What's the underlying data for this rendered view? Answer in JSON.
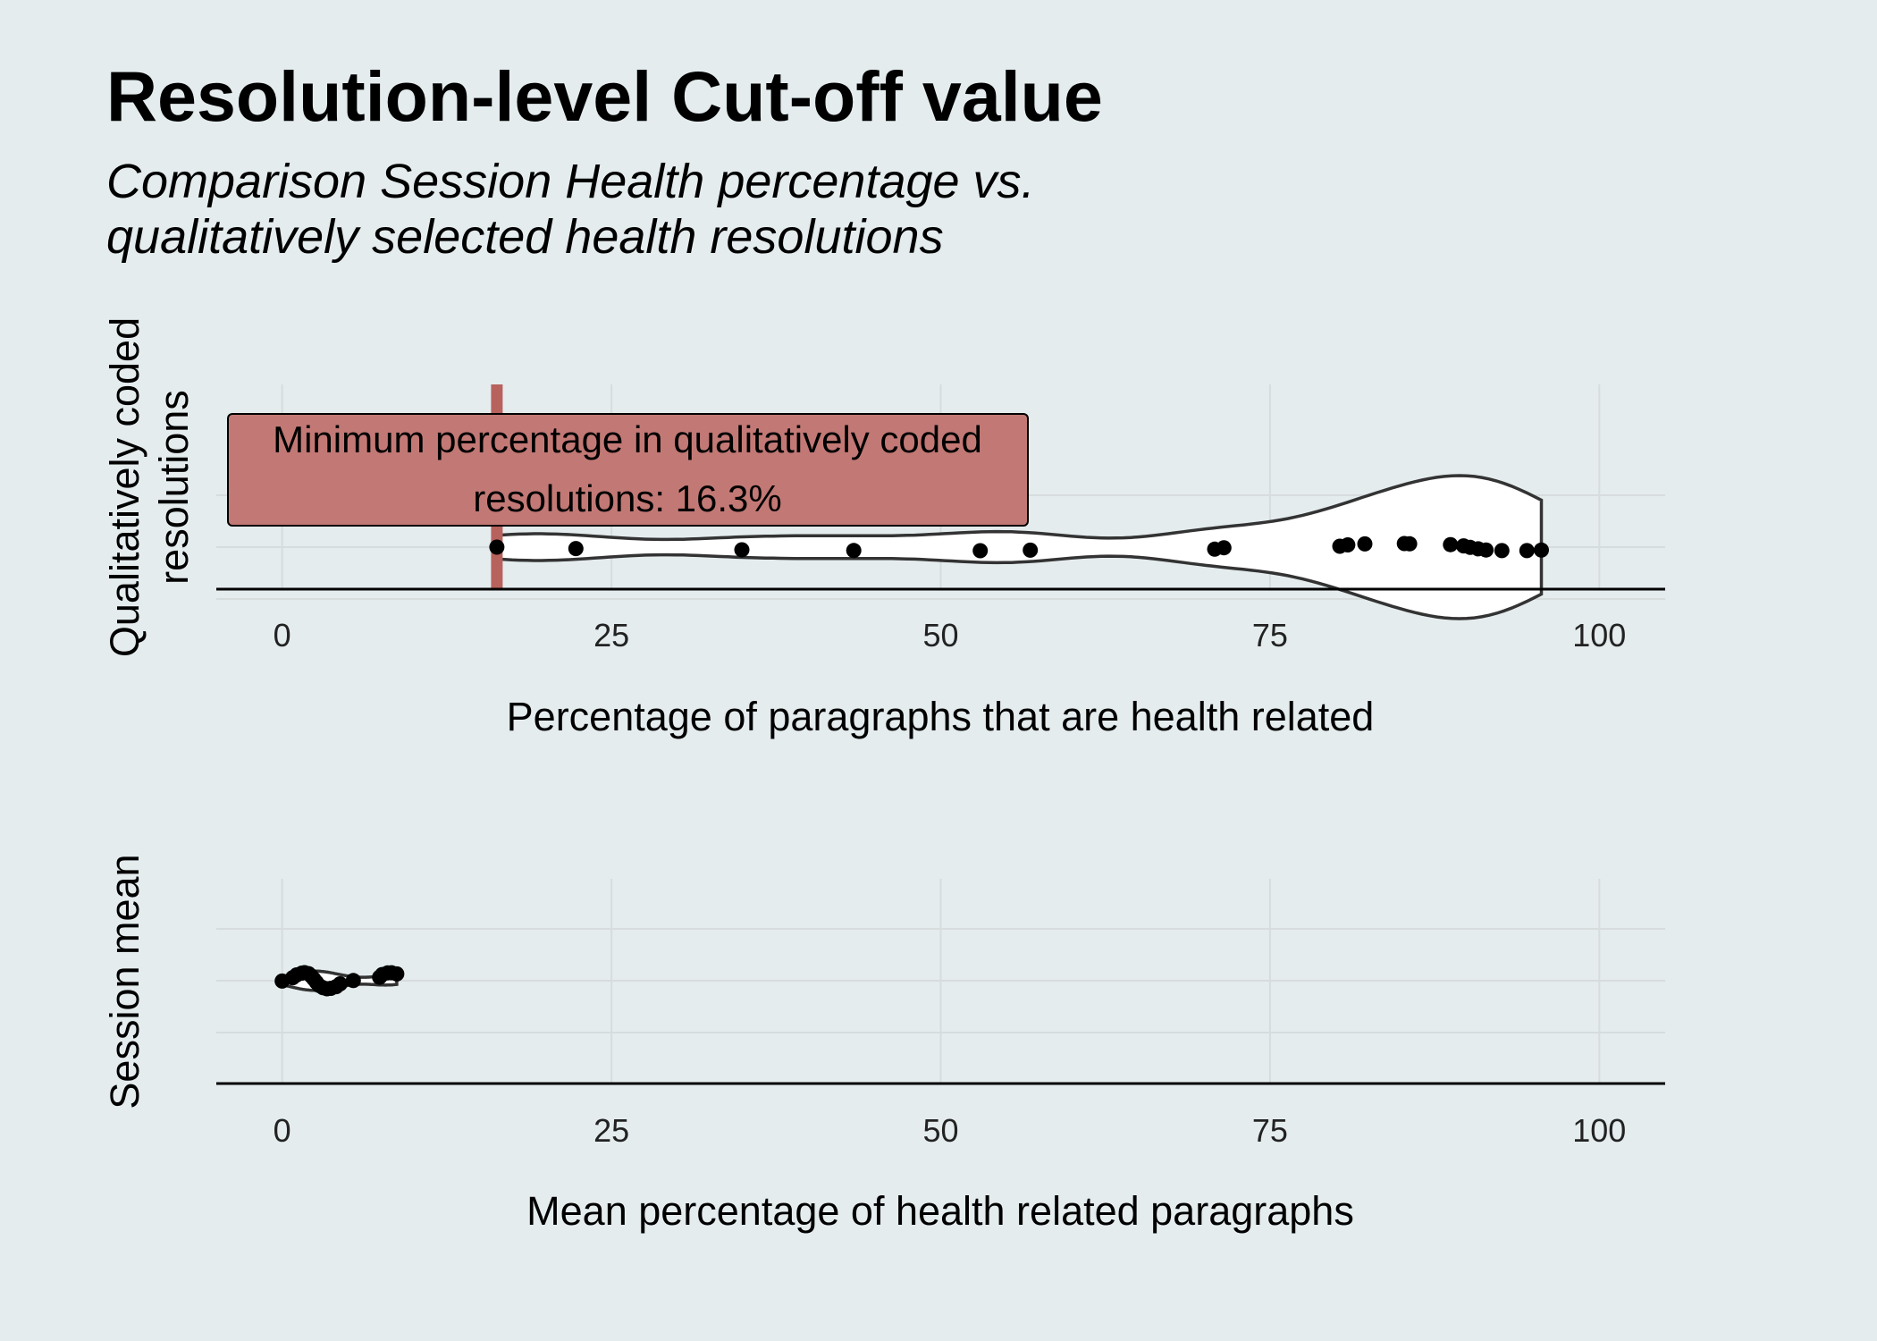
{
  "chart_data": [
    {
      "type": "violin",
      "title": "Resolution-level Cut-off value",
      "subtitle": [
        "Comparison Session Health percentage vs.",
        "qualitatively selected health resolutions"
      ],
      "xlabel": "Percentage of paragraphs that are health related",
      "ylabel": [
        "Qualitatively coded",
        "resolutions"
      ],
      "xlim": [
        -5,
        105
      ],
      "xticks": [
        0,
        25,
        50,
        75,
        100
      ],
      "x_tick_labels": [
        "0",
        "25",
        "50",
        "75",
        "100"
      ],
      "grid": true,
      "points": [
        16.3,
        22.3,
        34.9,
        43.4,
        53.0,
        56.8,
        70.8,
        71.5,
        80.3,
        80.9,
        82.2,
        85.2,
        85.6,
        88.7,
        89.7,
        90.2,
        90.8,
        91.4,
        92.6,
        94.5,
        95.6
      ],
      "cutoff": {
        "value": 16.3,
        "color": "#b8625e"
      },
      "annotation": {
        "lines": [
          "Minimum percentage in qualitatively coded",
          "resolutions: 16.3%"
        ],
        "fill": "#c27975"
      }
    },
    {
      "type": "violin",
      "xlabel": "Mean percentage of health related paragraphs",
      "ylabel": [
        "Session mean"
      ],
      "xlim": [
        -5,
        105
      ],
      "xticks": [
        0,
        25,
        50,
        75,
        100
      ],
      "x_tick_labels": [
        "0",
        "25",
        "50",
        "75",
        "100"
      ],
      "grid": true,
      "points": [
        0.0,
        0.8,
        1.1,
        1.5,
        1.7,
        2.0,
        2.2,
        2.4,
        2.6,
        2.8,
        3.1,
        3.4,
        3.7,
        4.1,
        4.4,
        5.4,
        7.4,
        7.6,
        8.0,
        8.3,
        8.7
      ]
    }
  ]
}
